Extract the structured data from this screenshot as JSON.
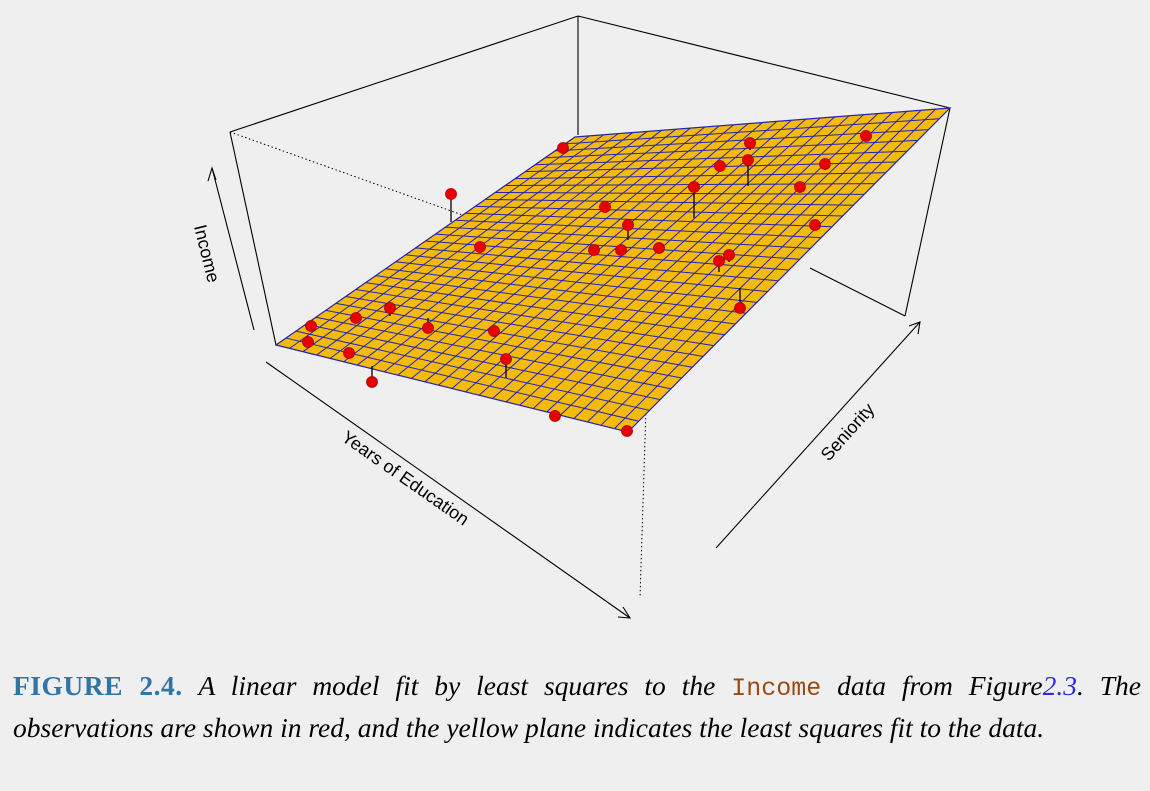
{
  "figure": {
    "axes": {
      "z_label": "Income",
      "x_label": "Years of Education",
      "y_label": "Seniority"
    },
    "colors": {
      "plane_fill": "#f4bb0c",
      "plane_grid": "#2323b3",
      "points": "#e60000",
      "box": "#000000",
      "background": "#efefef"
    }
  },
  "caption": {
    "label": "FIGURE 2.4.",
    "text_1": "A linear model fit by least squares to the",
    "code": "Income",
    "text_2": "data from Figure",
    "ref": "2.3",
    "text_3": ". The observations are shown in red, and the yellow plane indicates the least squares fit to the data."
  }
}
